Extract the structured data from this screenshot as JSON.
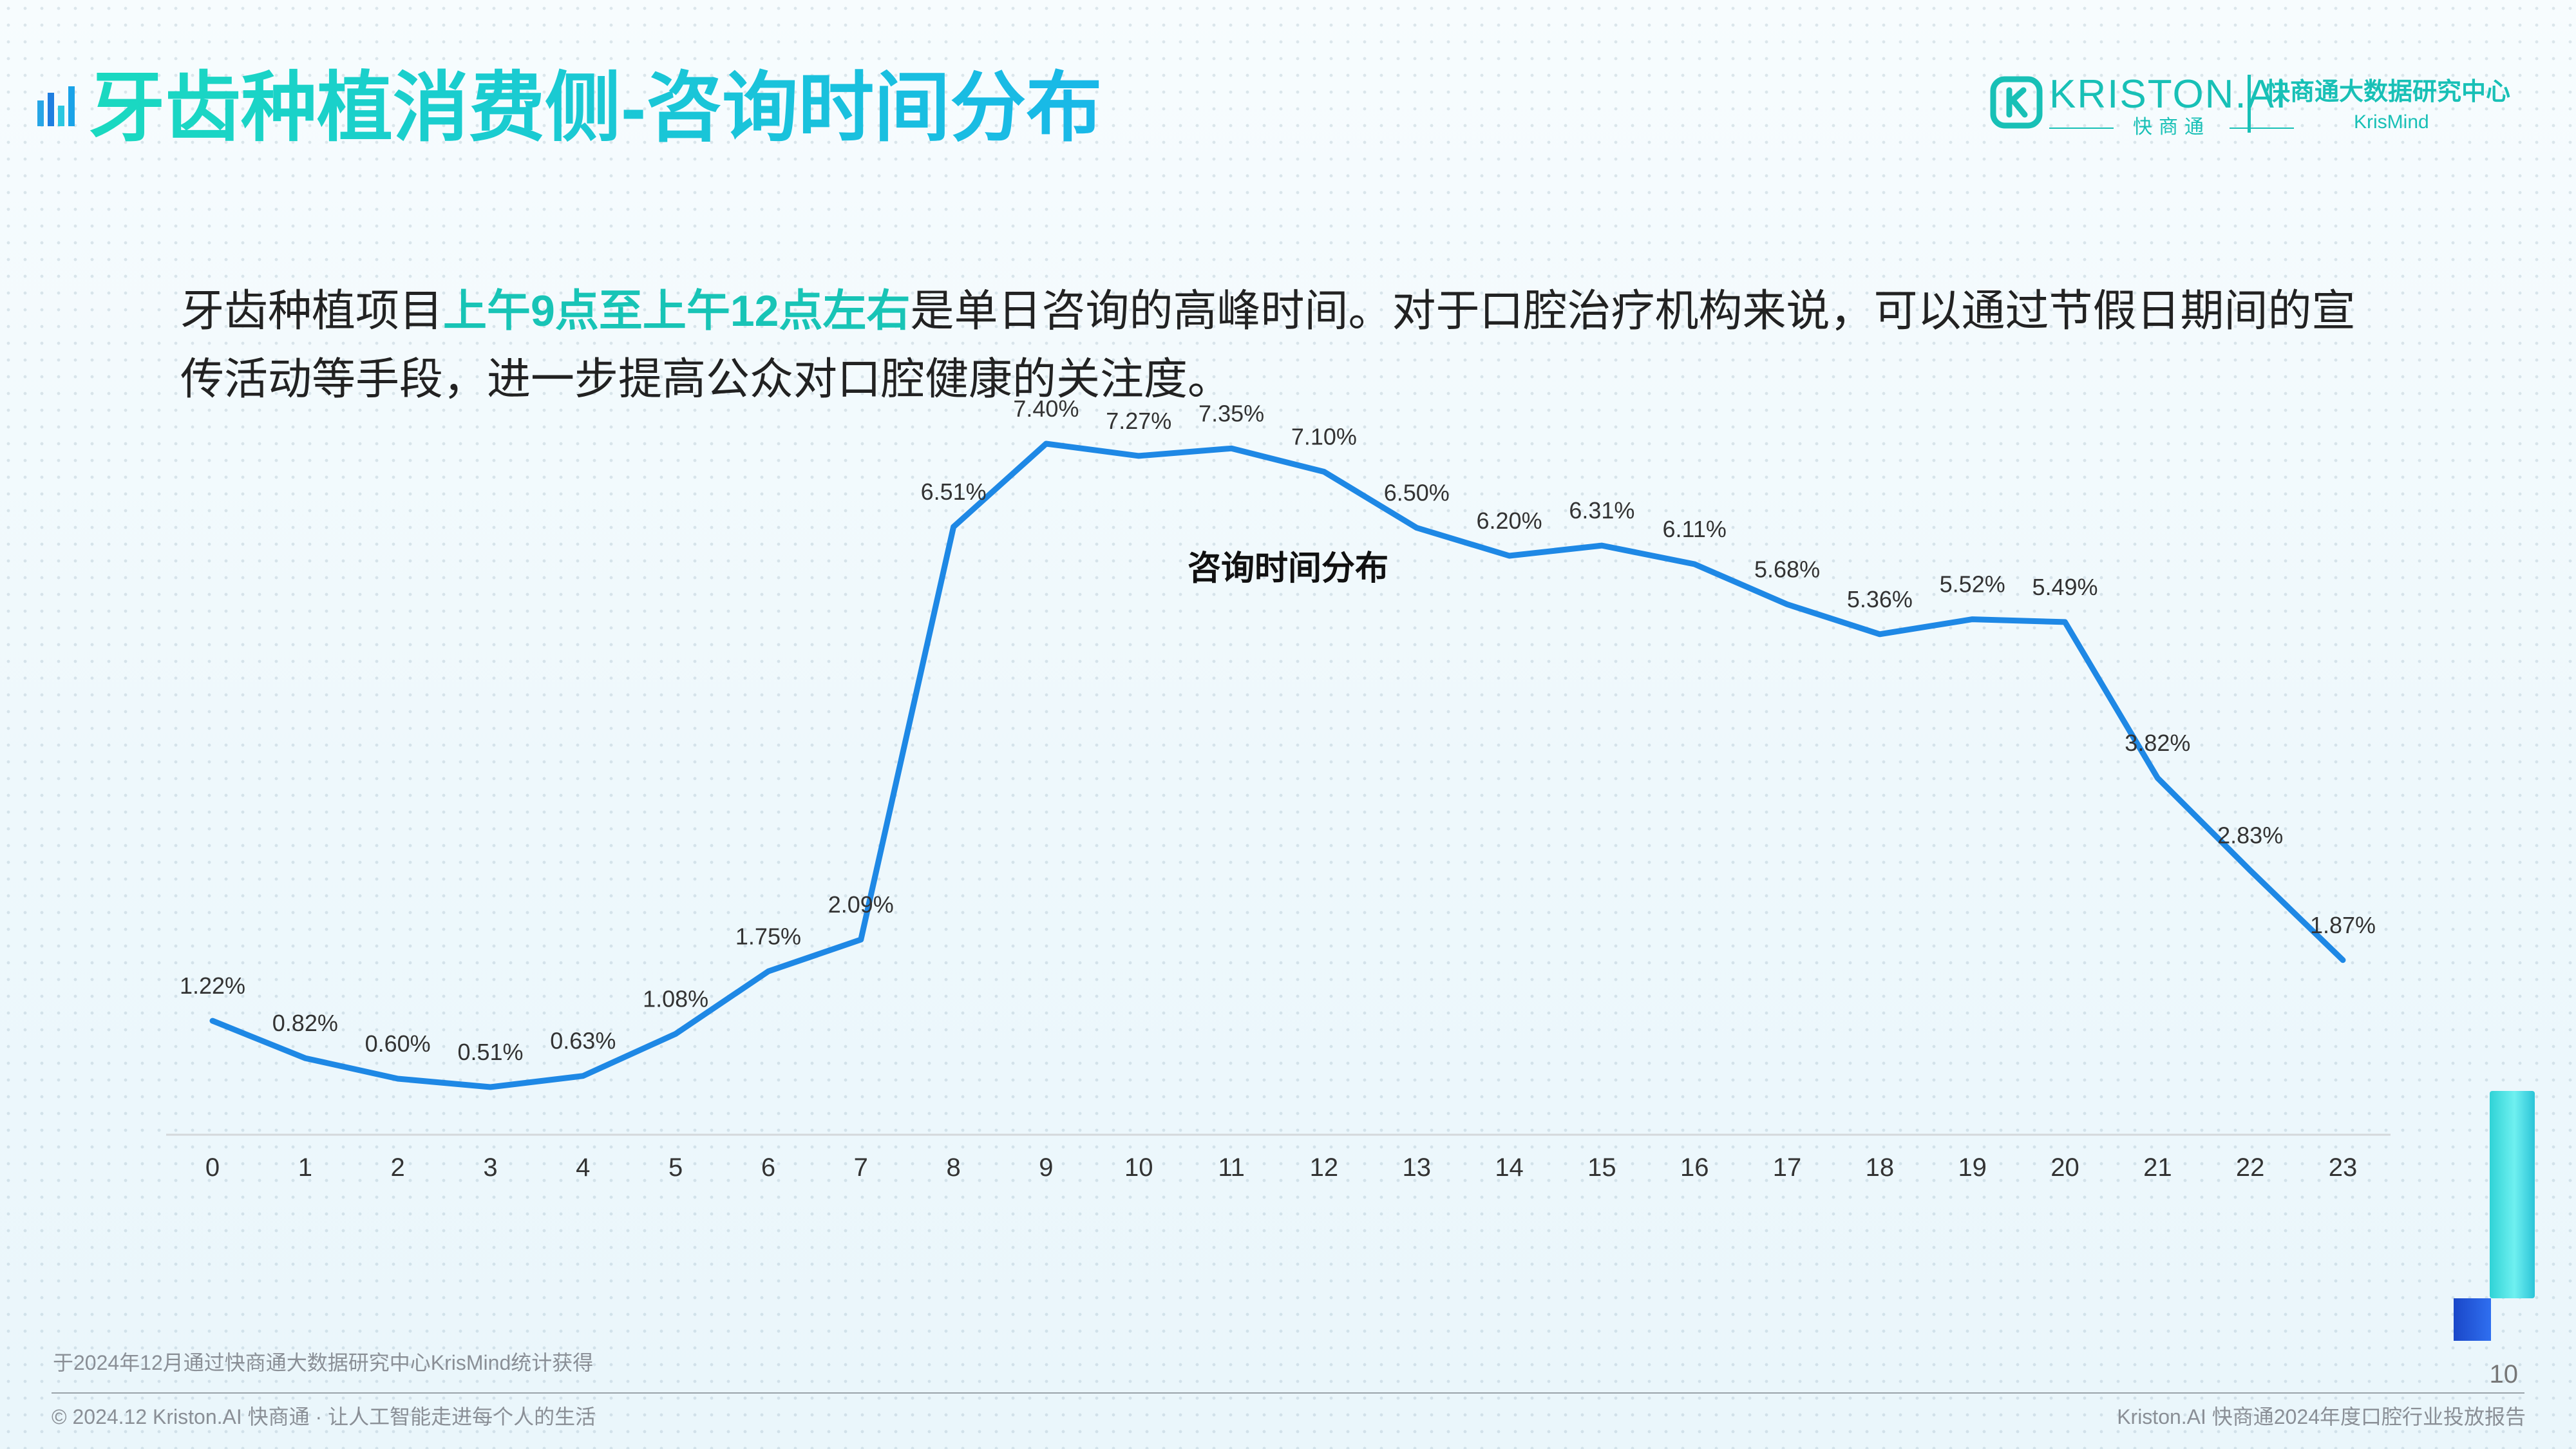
{
  "header": {
    "title": "牙齿种植消费侧-咨询时间分布",
    "brand": {
      "name": "KRISTON.AI",
      "sub": "快商通",
      "center": "快商通大数据研究中心",
      "center_en": "KrisMind"
    }
  },
  "description": {
    "part1": "牙齿种植项目",
    "highlight": "上午9点至上午12点左右",
    "part2": "是单日咨询的高峰时间。对于口腔治疗机构来说，可以通过节假日期间的宣传活动等手段，进一步提高公众对口腔健康的关注度。"
  },
  "chart_data": {
    "type": "line",
    "title": "咨询时间分布",
    "xlabel": "",
    "ylabel": "",
    "categories": [
      "0",
      "1",
      "2",
      "3",
      "4",
      "5",
      "6",
      "7",
      "8",
      "9",
      "10",
      "11",
      "12",
      "13",
      "14",
      "15",
      "16",
      "17",
      "18",
      "19",
      "20",
      "21",
      "22",
      "23"
    ],
    "values": [
      1.22,
      0.82,
      0.6,
      0.51,
      0.63,
      1.08,
      1.75,
      2.09,
      6.51,
      7.4,
      7.27,
      7.35,
      7.1,
      6.5,
      6.2,
      6.31,
      6.11,
      5.68,
      5.36,
      5.52,
      5.49,
      3.82,
      2.83,
      1.87
    ],
    "labels": [
      "1.22%",
      "0.82%",
      "0.60%",
      "0.51%",
      "0.63%",
      "1.08%",
      "1.75%",
      "2.09%",
      "6.51%",
      "7.40%",
      "7.27%",
      "7.35%",
      "7.10%",
      "6.50%",
      "6.20%",
      "6.31%",
      "6.11%",
      "5.68%",
      "5.36%",
      "5.52%",
      "5.49%",
      "3.82%",
      "2.83%",
      "1.87%"
    ],
    "ylim": [
      0,
      8
    ],
    "grid": false,
    "line_color": "#1e88e5"
  },
  "footer": {
    "source": "于2024年12月通过快商通大数据研究中心KrisMind统计获得",
    "page_number": "10",
    "copyright": "© 2024.12 Kriston.AI 快商通 · 让人工智能走进每个人的生活",
    "report_name": "Kriston.AI 快商通2024年度口腔行业投放报告"
  },
  "colors": {
    "accent": "#18c4b6",
    "title_gradient_start": "#1ad9c0",
    "title_gradient_end": "#19b8e8"
  },
  "icons": {
    "title": "bar-chart-icon",
    "brand": "kriston-logo-icon"
  }
}
